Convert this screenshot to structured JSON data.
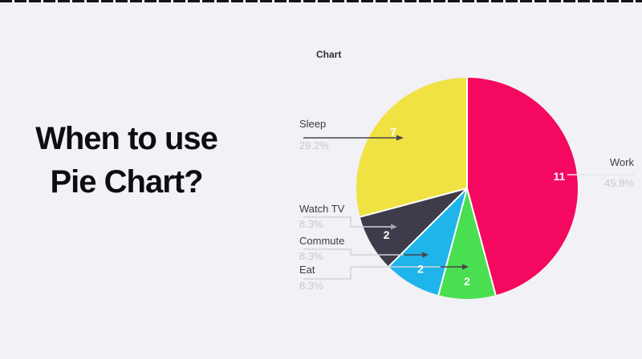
{
  "page": {
    "background_color": "#f1f1f6",
    "top_border_color": "#14141b"
  },
  "heading": {
    "line1": "When to use",
    "line2": "Pie Chart?"
  },
  "chart_data": {
    "type": "pie",
    "title": "Chart",
    "start_angle_deg": 0,
    "direction": "clockwise",
    "legend_position": "none",
    "value_label_color": "#ffffff",
    "separator_color": "#ffffff",
    "slices": [
      {
        "label": "Work",
        "value": 11,
        "percent": "45.8%",
        "color": "#f5085f"
      },
      {
        "label": "Eat",
        "value": 2,
        "percent": "8.3%",
        "color": "#4adf50"
      },
      {
        "label": "Commute",
        "value": 2,
        "percent": "8.3%",
        "color": "#1fb5ea"
      },
      {
        "label": "Watch TV",
        "value": 2,
        "percent": "8.3%",
        "color": "#3e3c4a"
      },
      {
        "label": "Sleep",
        "value": 7,
        "percent": "29.2%",
        "color": "#f0e243"
      }
    ]
  }
}
